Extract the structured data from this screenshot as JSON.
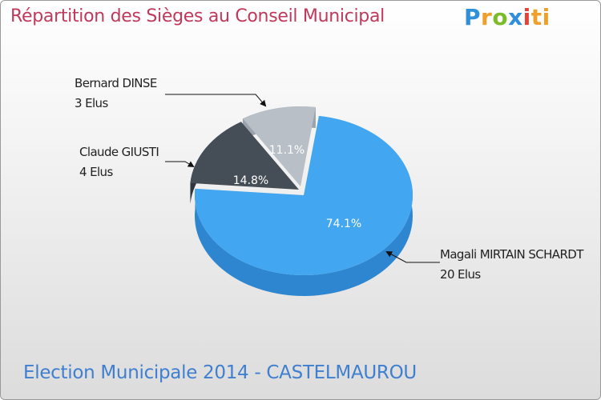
{
  "header": {
    "title": "Répartition des Sièges au Conseil Municipal",
    "logo_letters": [
      "P",
      "r",
      "o",
      "x",
      "i",
      "ti"
    ]
  },
  "footer": {
    "caption": "Election Municipale 2014 - CASTELMAUROU"
  },
  "chart_data": {
    "type": "pie",
    "title": "Répartition des Sièges au Conseil Municipal",
    "slices": [
      {
        "name": "Magali MIRTAIN SCHARDT",
        "seats": 20,
        "seats_label": "20 Elus",
        "percent": 74.1,
        "percent_label": "74.1%",
        "color": "#42a7f0",
        "side_color": "#2e86d0"
      },
      {
        "name": "Claude GIUSTI",
        "seats": 4,
        "seats_label": "4 Elus",
        "percent": 14.8,
        "percent_label": "14.8%",
        "color": "#454d56",
        "side_color": "#30363d"
      },
      {
        "name": "Bernard DINSE",
        "seats": 3,
        "seats_label": "3 Elus",
        "percent": 11.1,
        "percent_label": "11.1%",
        "color": "#b8bfc7",
        "side_color": "#9aa2ab"
      }
    ]
  }
}
